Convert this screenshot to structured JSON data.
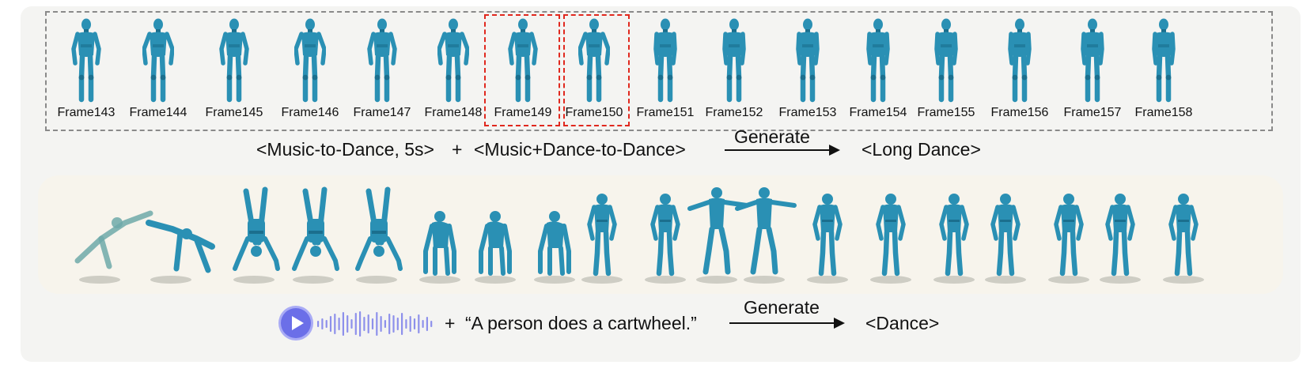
{
  "frames": {
    "labels": [
      "Frame143",
      "Frame144",
      "Frame145",
      "Frame146",
      "Frame147",
      "Frame148",
      "Frame149",
      "Frame150",
      "Frame151",
      "Frame152",
      "Frame153",
      "Frame154",
      "Frame155",
      "Frame156",
      "Frame157",
      "Frame158"
    ],
    "highlighted": [
      "Frame149",
      "Frame150"
    ]
  },
  "top_pipeline": {
    "input_1": "<Music-to-Dance, 5s>",
    "plus": "+",
    "input_2": "<Music+Dance-to-Dance>",
    "action": "Generate",
    "output": "<Long Dance>"
  },
  "bottom_pipeline": {
    "audio_icon": "play-icon",
    "plus": "+",
    "prompt": "“A person  does a cartwheel.”",
    "action": "Generate",
    "output": "<Dance>"
  },
  "colors": {
    "figure": "#2a90b4",
    "figure_dark": "#1b6f8e",
    "highlight_border": "#e0281e",
    "frame_border": "#8a8a8a",
    "audio_accent": "#6b6fe8"
  }
}
